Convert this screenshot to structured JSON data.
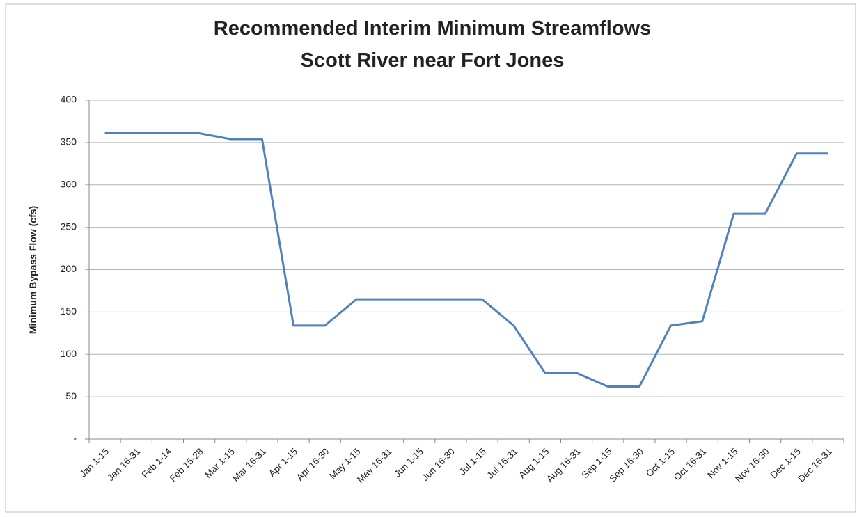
{
  "chart_data": {
    "type": "line",
    "title": "Recommended Interim Minimum Streamflows",
    "subtitle": "Scott River near Fort Jones",
    "y_label": "Minimum Bypass Flow (cfs)",
    "categories": [
      "Jan 1-15",
      "Jan 16-31",
      "Feb 1-14",
      "Feb 15-28",
      "Mar 1-15",
      "Mar 16-31",
      "Apr 1-15",
      "Apr 16-30",
      "May 1-15",
      "May 16-31",
      "Jun 1-15",
      "Jun 16-30",
      "Jul 1-15",
      "Jul 16-31",
      "Aug 1-15",
      "Aug 16-31",
      "Sep 1-15",
      "Sep 16-30",
      "Oct 1-15",
      "Oct 16-31",
      "Nov 1-15",
      "Nov 16-30",
      "Dec 1-15",
      "Dec 16-31"
    ],
    "values": [
      361,
      361,
      361,
      361,
      354,
      354,
      134,
      134,
      165,
      165,
      165,
      165,
      165,
      134,
      78,
      78,
      62,
      62,
      134,
      139,
      266,
      266,
      337,
      337
    ],
    "color": "#4f81bd",
    "ylim": [
      0,
      400
    ],
    "yticks": [
      {
        "value": 0,
        "label": "-"
      },
      50,
      100,
      150,
      200,
      250,
      300,
      350,
      400
    ],
    "grid": true
  }
}
